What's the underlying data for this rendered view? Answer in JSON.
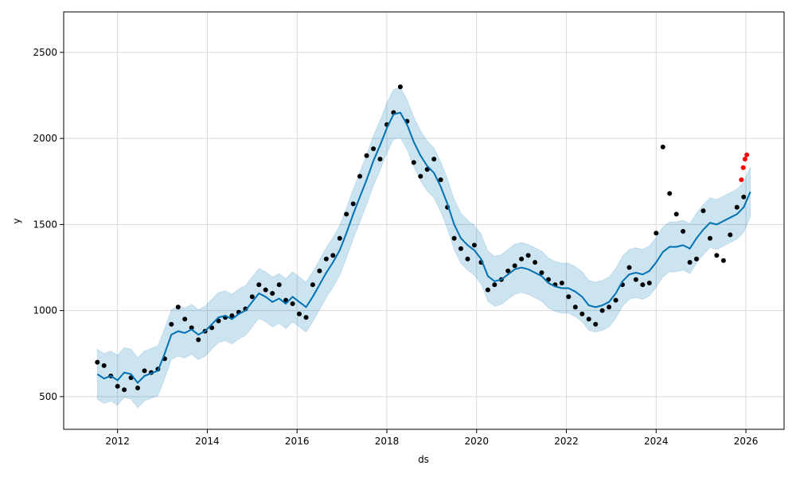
{
  "chart_data": {
    "type": "line",
    "xlabel": "ds",
    "ylabel": "y",
    "xlim": [
      2010.8,
      2026.85
    ],
    "ylim": [
      310,
      2735
    ],
    "x_ticks": [
      2012,
      2014,
      2016,
      2018,
      2020,
      2022,
      2024,
      2026
    ],
    "y_ticks": [
      500,
      1000,
      1500,
      2000,
      2500
    ],
    "grid": true,
    "legend": "none",
    "colors": {
      "forecast": "#0072B2",
      "uncertainty": "#0072B2",
      "actual": "#000000",
      "test": "#ff0000"
    },
    "series": [
      {
        "kind": "forecast",
        "x": [
          2011.55,
          2011.7,
          2011.85,
          2012.0,
          2012.15,
          2012.3,
          2012.45,
          2012.6,
          2012.75,
          2012.9,
          2013.05,
          2013.2,
          2013.35,
          2013.5,
          2013.65,
          2013.8,
          2013.95,
          2014.1,
          2014.25,
          2014.4,
          2014.55,
          2014.7,
          2014.85,
          2015.0,
          2015.15,
          2015.3,
          2015.45,
          2015.6,
          2015.75,
          2015.9,
          2016.05,
          2016.2,
          2016.35,
          2016.5,
          2016.65,
          2016.8,
          2016.95,
          2017.1,
          2017.25,
          2017.4,
          2017.55,
          2017.7,
          2017.85,
          2018.0,
          2018.15,
          2018.3,
          2018.45,
          2018.6,
          2018.75,
          2018.9,
          2019.05,
          2019.2,
          2019.35,
          2019.5,
          2019.65,
          2019.8,
          2019.95,
          2020.1,
          2020.25,
          2020.4,
          2020.55,
          2020.7,
          2020.85,
          2021.0,
          2021.15,
          2021.3,
          2021.45,
          2021.6,
          2021.75,
          2021.9,
          2022.05,
          2022.2,
          2022.35,
          2022.5,
          2022.65,
          2022.8,
          2022.95,
          2023.1,
          2023.25,
          2023.4,
          2023.55,
          2023.7,
          2023.85,
          2024.0,
          2024.15,
          2024.3,
          2024.45,
          2024.6,
          2024.75,
          2024.9,
          2025.05,
          2025.2,
          2025.35,
          2025.5,
          2025.65,
          2025.8,
          2025.95,
          2026.1
        ],
        "y": [
          630,
          605,
          620,
          595,
          640,
          630,
          580,
          620,
          635,
          650,
          750,
          860,
          880,
          870,
          890,
          860,
          880,
          920,
          960,
          970,
          950,
          980,
          1000,
          1050,
          1100,
          1080,
          1050,
          1070,
          1040,
          1080,
          1050,
          1020,
          1080,
          1150,
          1220,
          1280,
          1350,
          1450,
          1560,
          1660,
          1760,
          1870,
          1960,
          2060,
          2140,
          2150,
          2080,
          1980,
          1900,
          1840,
          1800,
          1720,
          1620,
          1500,
          1420,
          1380,
          1350,
          1300,
          1200,
          1170,
          1180,
          1210,
          1240,
          1250,
          1240,
          1220,
          1200,
          1160,
          1140,
          1130,
          1130,
          1110,
          1080,
          1030,
          1020,
          1030,
          1050,
          1100,
          1170,
          1210,
          1220,
          1210,
          1230,
          1280,
          1340,
          1370,
          1370,
          1380,
          1360,
          1420,
          1470,
          1510,
          1500,
          1520,
          1540,
          1560,
          1600,
          1690
        ]
      },
      {
        "kind": "uncertainty_band",
        "x": [
          2011.55,
          2011.7,
          2011.85,
          2012.0,
          2012.15,
          2012.3,
          2012.45,
          2012.6,
          2012.75,
          2012.9,
          2013.05,
          2013.2,
          2013.35,
          2013.5,
          2013.65,
          2013.8,
          2013.95,
          2014.1,
          2014.25,
          2014.4,
          2014.55,
          2014.7,
          2014.85,
          2015.0,
          2015.15,
          2015.3,
          2015.45,
          2015.6,
          2015.75,
          2015.9,
          2016.05,
          2016.2,
          2016.35,
          2016.5,
          2016.65,
          2016.8,
          2016.95,
          2017.1,
          2017.25,
          2017.4,
          2017.55,
          2017.7,
          2017.85,
          2018.0,
          2018.15,
          2018.3,
          2018.45,
          2018.6,
          2018.75,
          2018.9,
          2019.05,
          2019.2,
          2019.35,
          2019.5,
          2019.65,
          2019.8,
          2019.95,
          2020.1,
          2020.25,
          2020.4,
          2020.55,
          2020.7,
          2020.85,
          2021.0,
          2021.15,
          2021.3,
          2021.45,
          2021.6,
          2021.75,
          2021.9,
          2022.05,
          2022.2,
          2022.35,
          2022.5,
          2022.65,
          2022.8,
          2022.95,
          2023.1,
          2023.25,
          2023.4,
          2023.55,
          2023.7,
          2023.85,
          2024.0,
          2024.15,
          2024.3,
          2024.45,
          2024.6,
          2024.75,
          2024.9,
          2025.05,
          2025.2,
          2025.35,
          2025.5,
          2025.65,
          2025.8,
          2025.95,
          2026.1
        ],
        "upper": [
          775,
          750,
          765,
          740,
          785,
          775,
          725,
          765,
          780,
          795,
          895,
          1005,
          1025,
          1015,
          1035,
          1005,
          1025,
          1065,
          1105,
          1115,
          1095,
          1125,
          1145,
          1195,
          1245,
          1225,
          1195,
          1215,
          1185,
          1225,
          1195,
          1165,
          1225,
          1295,
          1365,
          1425,
          1495,
          1595,
          1705,
          1805,
          1905,
          2015,
          2105,
          2205,
          2285,
          2295,
          2225,
          2125,
          2045,
          1985,
          1945,
          1865,
          1765,
          1645,
          1565,
          1525,
          1495,
          1445,
          1345,
          1315,
          1325,
          1355,
          1385,
          1395,
          1385,
          1365,
          1345,
          1305,
          1285,
          1275,
          1275,
          1255,
          1225,
          1175,
          1165,
          1175,
          1195,
          1245,
          1315,
          1355,
          1365,
          1355,
          1375,
          1425,
          1485,
          1515,
          1515,
          1525,
          1505,
          1565,
          1615,
          1655,
          1645,
          1665,
          1685,
          1705,
          1745,
          1835
        ],
        "lower": [
          485,
          460,
          475,
          450,
          495,
          485,
          435,
          475,
          490,
          505,
          605,
          715,
          735,
          725,
          745,
          715,
          735,
          775,
          815,
          825,
          805,
          835,
          855,
          905,
          955,
          935,
          905,
          925,
          895,
          935,
          905,
          875,
          935,
          1005,
          1075,
          1135,
          1205,
          1305,
          1415,
          1515,
          1615,
          1725,
          1815,
          1915,
          1995,
          2005,
          1935,
          1835,
          1755,
          1695,
          1655,
          1575,
          1475,
          1355,
          1275,
          1235,
          1205,
          1155,
          1055,
          1025,
          1035,
          1065,
          1095,
          1105,
          1095,
          1075,
          1055,
          1015,
          995,
          985,
          985,
          965,
          935,
          885,
          875,
          885,
          905,
          955,
          1025,
          1065,
          1075,
          1065,
          1085,
          1135,
          1195,
          1225,
          1225,
          1235,
          1215,
          1275,
          1325,
          1365,
          1355,
          1375,
          1395,
          1415,
          1455,
          1545
        ]
      },
      {
        "kind": "actual",
        "x": [
          2011.55,
          2011.7,
          2011.85,
          2012.0,
          2012.15,
          2012.3,
          2012.45,
          2012.6,
          2012.75,
          2012.9,
          2013.05,
          2013.2,
          2013.35,
          2013.5,
          2013.65,
          2013.8,
          2013.95,
          2014.1,
          2014.25,
          2014.4,
          2014.55,
          2014.7,
          2014.85,
          2015.0,
          2015.15,
          2015.3,
          2015.45,
          2015.6,
          2015.75,
          2015.9,
          2016.05,
          2016.2,
          2016.35,
          2016.5,
          2016.65,
          2016.8,
          2016.95,
          2017.1,
          2017.25,
          2017.4,
          2017.55,
          2017.7,
          2017.85,
          2018.0,
          2018.15,
          2018.3,
          2018.45,
          2018.6,
          2018.75,
          2018.9,
          2019.05,
          2019.2,
          2019.35,
          2019.5,
          2019.65,
          2019.8,
          2019.95,
          2020.1,
          2020.25,
          2020.4,
          2020.55,
          2020.7,
          2020.85,
          2021.0,
          2021.15,
          2021.3,
          2021.45,
          2021.6,
          2021.75,
          2021.9,
          2022.05,
          2022.2,
          2022.35,
          2022.5,
          2022.65,
          2022.8,
          2022.95,
          2023.1,
          2023.25,
          2023.4,
          2023.55,
          2023.7,
          2023.85,
          2024.0,
          2024.15,
          2024.3,
          2024.45,
          2024.6,
          2024.75,
          2024.9,
          2025.05,
          2025.2,
          2025.35,
          2025.5,
          2025.65,
          2025.8,
          2025.95
        ],
        "y": [
          700,
          680,
          620,
          560,
          540,
          610,
          550,
          650,
          640,
          660,
          720,
          920,
          1020,
          950,
          900,
          830,
          880,
          900,
          940,
          960,
          970,
          990,
          1010,
          1080,
          1150,
          1120,
          1100,
          1150,
          1060,
          1040,
          980,
          960,
          1150,
          1230,
          1300,
          1320,
          1420,
          1560,
          1620,
          1780,
          1900,
          1940,
          1880,
          2080,
          2150,
          2300,
          2100,
          1860,
          1780,
          1820,
          1880,
          1760,
          1600,
          1420,
          1360,
          1300,
          1380,
          1280,
          1120,
          1150,
          1180,
          1230,
          1260,
          1300,
          1320,
          1280,
          1220,
          1180,
          1150,
          1160,
          1080,
          1020,
          980,
          950,
          920,
          1000,
          1020,
          1060,
          1150,
          1250,
          1180,
          1150,
          1160,
          1450,
          1950,
          1680,
          1560,
          1460,
          1280,
          1300,
          1580,
          1420,
          1320,
          1290,
          1440,
          1600,
          1660
        ]
      },
      {
        "kind": "test",
        "x": [
          2025.9,
          2025.94,
          2025.98,
          2026.02
        ],
        "y": [
          1760,
          1830,
          1880,
          1905
        ]
      }
    ]
  }
}
